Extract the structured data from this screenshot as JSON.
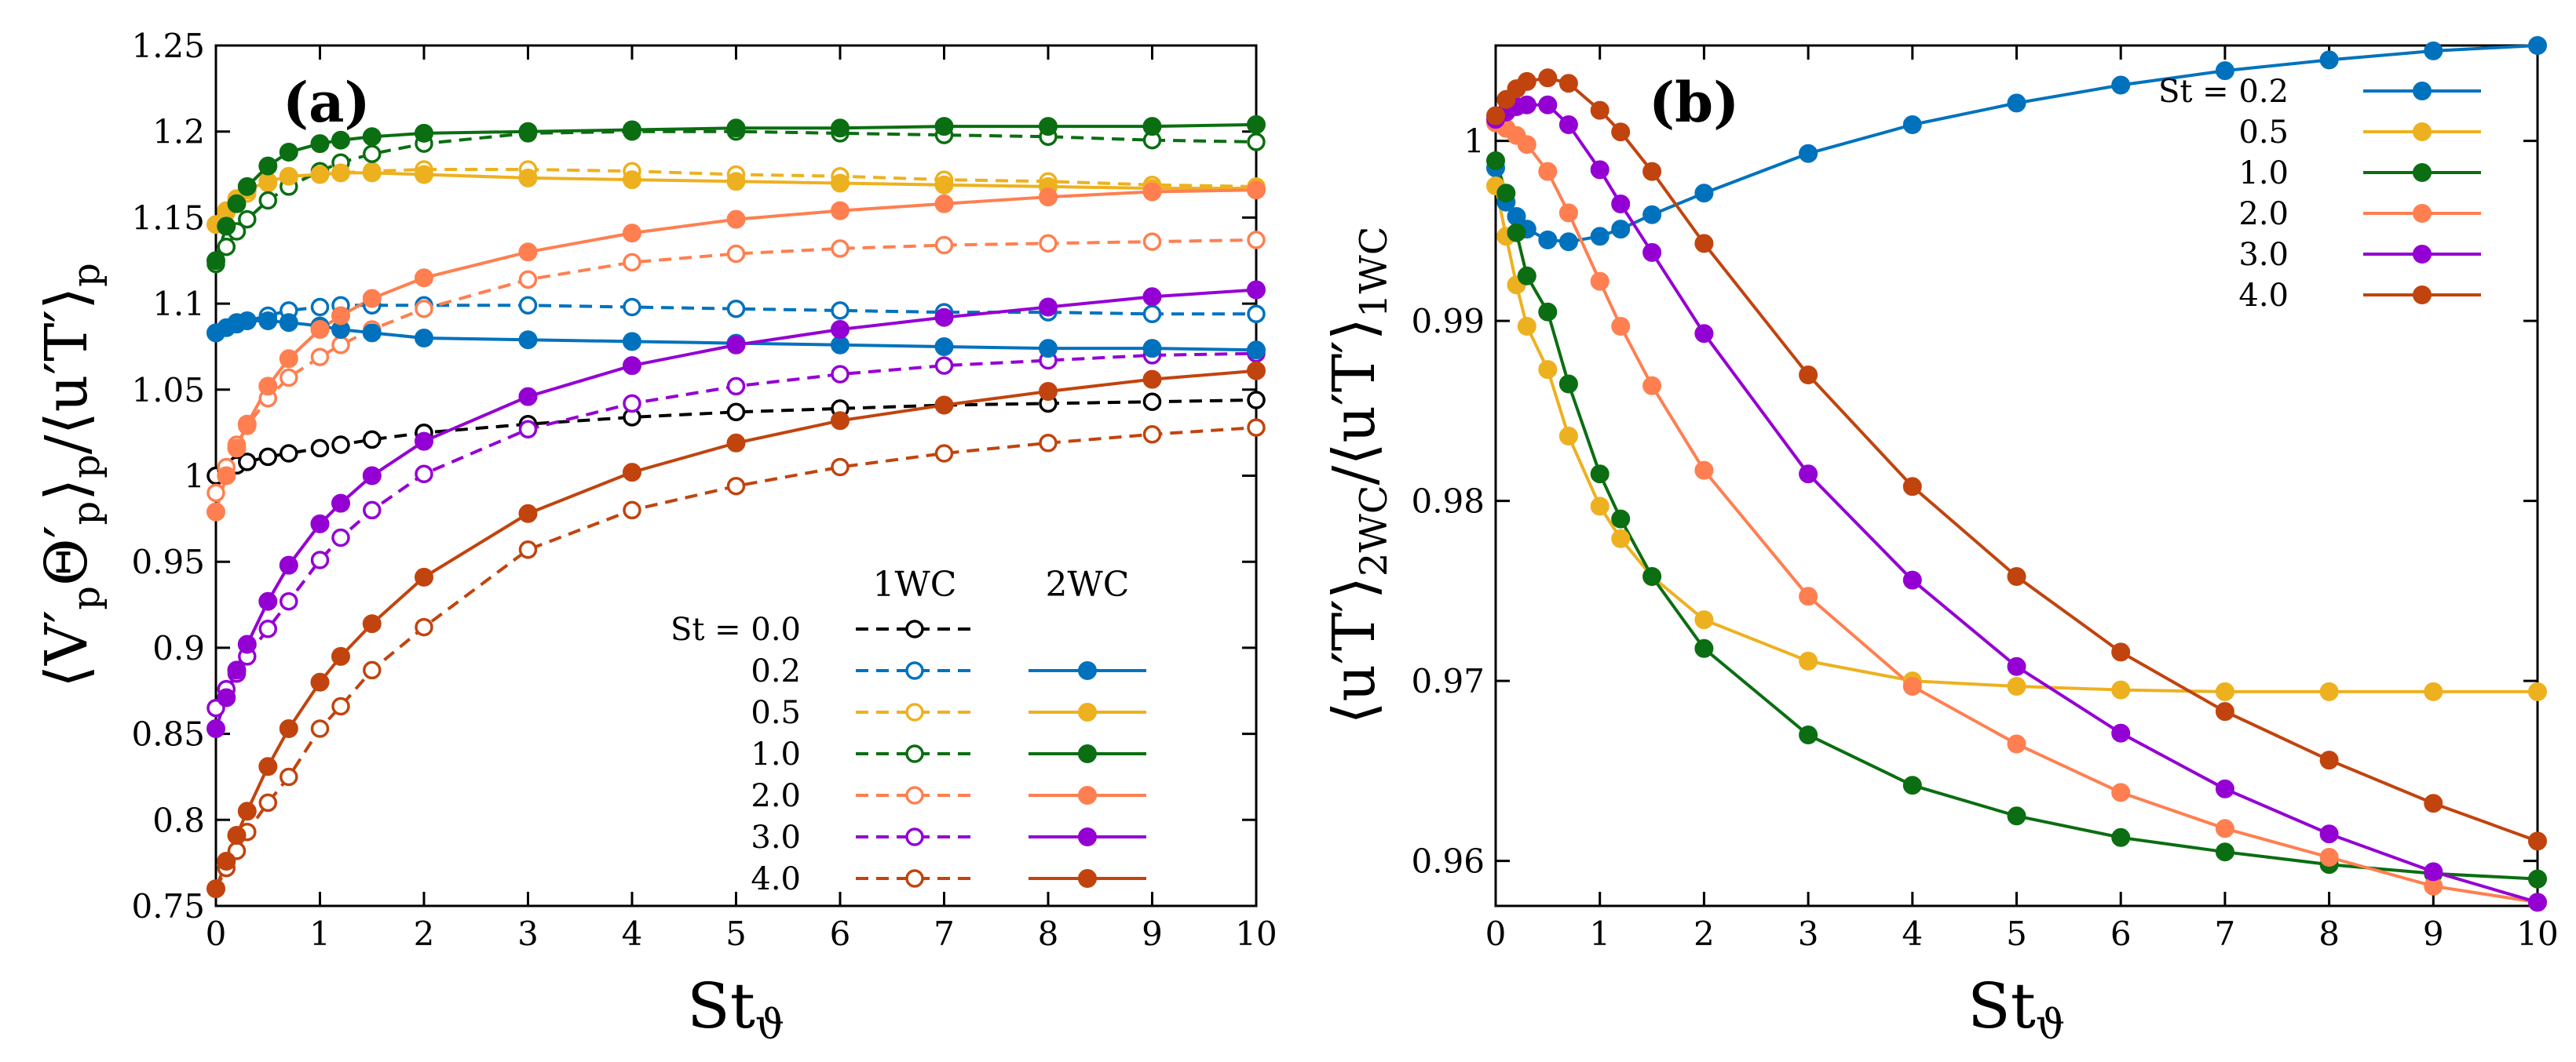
{
  "figure_labels": [
    "(a)",
    "(b)"
  ],
  "chart_data": [
    {
      "type": "line",
      "panel": "(a)",
      "xlabel": "St_ϑ",
      "ylabel": "⟨V′_p Θ′_p⟩_p / ⟨u′T′⟩_p",
      "xlim": [
        0,
        10
      ],
      "ylim": [
        0.75,
        1.25
      ],
      "xticks": [
        "0",
        "1",
        "2",
        "3",
        "4",
        "5",
        "6",
        "7",
        "8",
        "9",
        "10"
      ],
      "yticks": [
        "0.75",
        "0.8",
        "0.85",
        "0.9",
        "0.95",
        "1",
        "1.05",
        "1.1",
        "1.15",
        "1.2",
        "1.25"
      ],
      "legend": {
        "position": "lower-right",
        "header_label": "St",
        "col_1wc": "1WC",
        "col_2wc": "2WC",
        "rows": [
          "0.0",
          "0.2",
          "0.5",
          "1.0",
          "2.0",
          "3.0",
          "4.0"
        ]
      },
      "x": [
        0,
        0.1,
        0.2,
        0.3,
        0.5,
        0.7,
        1.0,
        1.2,
        1.5,
        2,
        3,
        4,
        5,
        6,
        7,
        8,
        9,
        10
      ],
      "series": [
        {
          "name": "1WC St=0.0",
          "st": "0.0",
          "style": "dashed-open",
          "color": "#000000",
          "values": [
            1.0,
            1.003,
            1.006,
            1.008,
            1.011,
            1.013,
            1.016,
            1.018,
            1.021,
            1.025,
            1.03,
            1.034,
            1.037,
            1.039,
            1.041,
            1.042,
            1.043,
            1.044
          ]
        },
        {
          "name": "1WC St=0.2",
          "st": "0.2",
          "style": "dashed-open",
          "color": "#0072bd",
          "values": [
            1.083,
            1.086,
            1.088,
            1.09,
            1.093,
            1.096,
            1.098,
            1.099,
            1.099,
            1.099,
            1.099,
            1.098,
            1.097,
            1.096,
            1.095,
            1.095,
            1.094,
            1.094
          ]
        },
        {
          "name": "1WC St=0.5",
          "st": "0.5",
          "style": "dashed-open",
          "color": "#edb120",
          "values": [
            1.146,
            1.153,
            1.159,
            1.164,
            1.17,
            1.173,
            1.175,
            1.176,
            1.177,
            1.178,
            1.178,
            1.177,
            1.175,
            1.174,
            1.172,
            1.171,
            1.169,
            1.168
          ]
        },
        {
          "name": "1WC St=1.0",
          "st": "1.0",
          "style": "dashed-open",
          "color": "#0b6e12",
          "values": [
            1.123,
            1.133,
            1.142,
            1.149,
            1.16,
            1.168,
            1.177,
            1.182,
            1.187,
            1.193,
            1.199,
            1.2,
            1.2,
            1.199,
            1.198,
            1.197,
            1.195,
            1.194
          ]
        },
        {
          "name": "1WC St=2.0",
          "st": "2.0",
          "style": "dashed-open",
          "color": "#ff7f50",
          "values": [
            0.99,
            1.005,
            1.018,
            1.029,
            1.045,
            1.057,
            1.069,
            1.076,
            1.085,
            1.097,
            1.114,
            1.124,
            1.129,
            1.132,
            1.134,
            1.135,
            1.136,
            1.137
          ]
        },
        {
          "name": "1WC St=3.0",
          "st": "3.0",
          "style": "dashed-open",
          "color": "#9400d3",
          "values": [
            0.865,
            0.876,
            0.885,
            0.895,
            0.911,
            0.927,
            0.951,
            0.964,
            0.98,
            1.001,
            1.027,
            1.042,
            1.052,
            1.059,
            1.064,
            1.067,
            1.07,
            1.071
          ]
        },
        {
          "name": "1WC St=4.0",
          "st": "4.0",
          "style": "dashed-open",
          "color": "#c1440e",
          "values": [
            0.76,
            0.772,
            0.782,
            0.793,
            0.81,
            0.825,
            0.853,
            0.866,
            0.887,
            0.912,
            0.957,
            0.98,
            0.994,
            1.005,
            1.013,
            1.019,
            1.024,
            1.028
          ]
        },
        {
          "name": "2WC St=0.2",
          "st": "0.2",
          "style": "solid-filled",
          "color": "#0072bd",
          "values": [
            1.083,
            1.086,
            1.089,
            1.09,
            1.09,
            1.089,
            1.087,
            1.085,
            1.083,
            1.08,
            1.079,
            1.078,
            1.077,
            1.076,
            1.075,
            1.074,
            1.074,
            1.073
          ]
        },
        {
          "name": "2WC St=0.5",
          "st": "0.5",
          "style": "solid-filled",
          "color": "#edb120",
          "values": [
            1.146,
            1.154,
            1.161,
            1.166,
            1.171,
            1.174,
            1.175,
            1.176,
            1.176,
            1.175,
            1.173,
            1.172,
            1.171,
            1.17,
            1.169,
            1.168,
            1.167,
            1.167
          ]
        },
        {
          "name": "2WC St=1.0",
          "st": "1.0",
          "style": "solid-filled",
          "color": "#0b6e12",
          "values": [
            1.125,
            1.145,
            1.158,
            1.168,
            1.18,
            1.188,
            1.193,
            1.195,
            1.197,
            1.199,
            1.2,
            1.201,
            1.202,
            1.202,
            1.203,
            1.203,
            1.203,
            1.204
          ]
        },
        {
          "name": "2WC St=2.0",
          "st": "2.0",
          "style": "solid-filled",
          "color": "#ff7f50",
          "values": [
            0.979,
            1.0,
            1.016,
            1.03,
            1.052,
            1.068,
            1.085,
            1.093,
            1.103,
            1.115,
            1.13,
            1.141,
            1.149,
            1.154,
            1.158,
            1.162,
            1.165,
            1.166
          ]
        },
        {
          "name": "2WC St=3.0",
          "st": "3.0",
          "style": "solid-filled",
          "color": "#9400d3",
          "values": [
            0.853,
            0.871,
            0.887,
            0.902,
            0.927,
            0.948,
            0.972,
            0.984,
            1.0,
            1.02,
            1.046,
            1.064,
            1.076,
            1.085,
            1.092,
            1.098,
            1.104,
            1.108
          ]
        },
        {
          "name": "2WC St=4.0",
          "st": "4.0",
          "style": "solid-filled",
          "color": "#c1440e",
          "values": [
            0.76,
            0.776,
            0.791,
            0.805,
            0.831,
            0.853,
            0.88,
            0.895,
            0.914,
            0.941,
            0.978,
            1.002,
            1.019,
            1.032,
            1.041,
            1.049,
            1.056,
            1.061
          ]
        }
      ]
    },
    {
      "type": "line",
      "panel": "(b)",
      "xlabel": "St_ϑ",
      "ylabel": "⟨u′T′⟩_2WC / ⟨u′T′⟩_1WC",
      "xlim": [
        0,
        10
      ],
      "ylim": [
        0.9575,
        1.0053
      ],
      "xticks": [
        "0",
        "1",
        "2",
        "3",
        "4",
        "5",
        "6",
        "7",
        "8",
        "9",
        "10"
      ],
      "yticks": [
        "0.96",
        "0.97",
        "0.98",
        "0.99",
        "1"
      ],
      "ytick_values": [
        0.96,
        0.97,
        0.98,
        0.99,
        1.0
      ],
      "legend": {
        "position": "top-right",
        "header_label": "St",
        "rows": [
          "0.2",
          "0.5",
          "1.0",
          "2.0",
          "3.0",
          "4.0"
        ]
      },
      "x": [
        0,
        0.1,
        0.2,
        0.3,
        0.5,
        0.7,
        1.0,
        1.2,
        1.5,
        2,
        3,
        4,
        5,
        6,
        7,
        8,
        9,
        10
      ],
      "series": [
        {
          "name": "St=0.2",
          "st": "0.2",
          "color": "#0072bd",
          "values": [
            0.9985,
            0.9966,
            0.9958,
            0.9951,
            0.9945,
            0.9944,
            0.9947,
            0.9951,
            0.9959,
            0.9971,
            0.9993,
            1.0009,
            1.0021,
            1.0031,
            1.0039,
            1.0045,
            1.005,
            1.0053
          ]
        },
        {
          "name": "St=0.5",
          "st": "0.5",
          "color": "#edb120",
          "values": [
            0.9975,
            0.9947,
            0.992,
            0.9897,
            0.9873,
            0.9836,
            0.9797,
            0.9779,
            0.9758,
            0.9734,
            0.9711,
            0.97,
            0.9697,
            0.9695,
            0.9694,
            0.9694,
            0.9694,
            0.9694
          ]
        },
        {
          "name": "St=1.0",
          "st": "1.0",
          "color": "#0b6e12",
          "values": [
            0.9989,
            0.9971,
            0.9949,
            0.9925,
            0.9905,
            0.9865,
            0.9815,
            0.979,
            0.9758,
            0.9718,
            0.967,
            0.9642,
            0.9625,
            0.9613,
            0.9605,
            0.9598,
            0.9593,
            0.959
          ]
        },
        {
          "name": "St=2.0",
          "st": "2.0",
          "color": "#ff7f50",
          "values": [
            1.001,
            1.0007,
            1.0003,
            0.9998,
            0.9983,
            0.996,
            0.9922,
            0.9897,
            0.9864,
            0.9817,
            0.9747,
            0.9697,
            0.9665,
            0.9638,
            0.9618,
            0.9602,
            0.9586,
            0.9577
          ]
        },
        {
          "name": "St=3.0",
          "st": "3.0",
          "color": "#9400d3",
          "values": [
            1.0012,
            1.0016,
            1.0019,
            1.002,
            1.002,
            1.0009,
            0.9984,
            0.9965,
            0.9938,
            0.9893,
            0.9815,
            0.9756,
            0.9708,
            0.9671,
            0.964,
            0.9615,
            0.9594,
            0.9577
          ]
        },
        {
          "name": "St=4.0",
          "st": "4.0",
          "color": "#c1440e",
          "values": [
            1.0014,
            1.0023,
            1.0029,
            1.0033,
            1.0035,
            1.0032,
            1.0017,
            1.0005,
            0.9983,
            0.9943,
            0.987,
            0.9808,
            0.9758,
            0.9716,
            0.9683,
            0.9656,
            0.9632,
            0.9611
          ]
        }
      ]
    }
  ]
}
